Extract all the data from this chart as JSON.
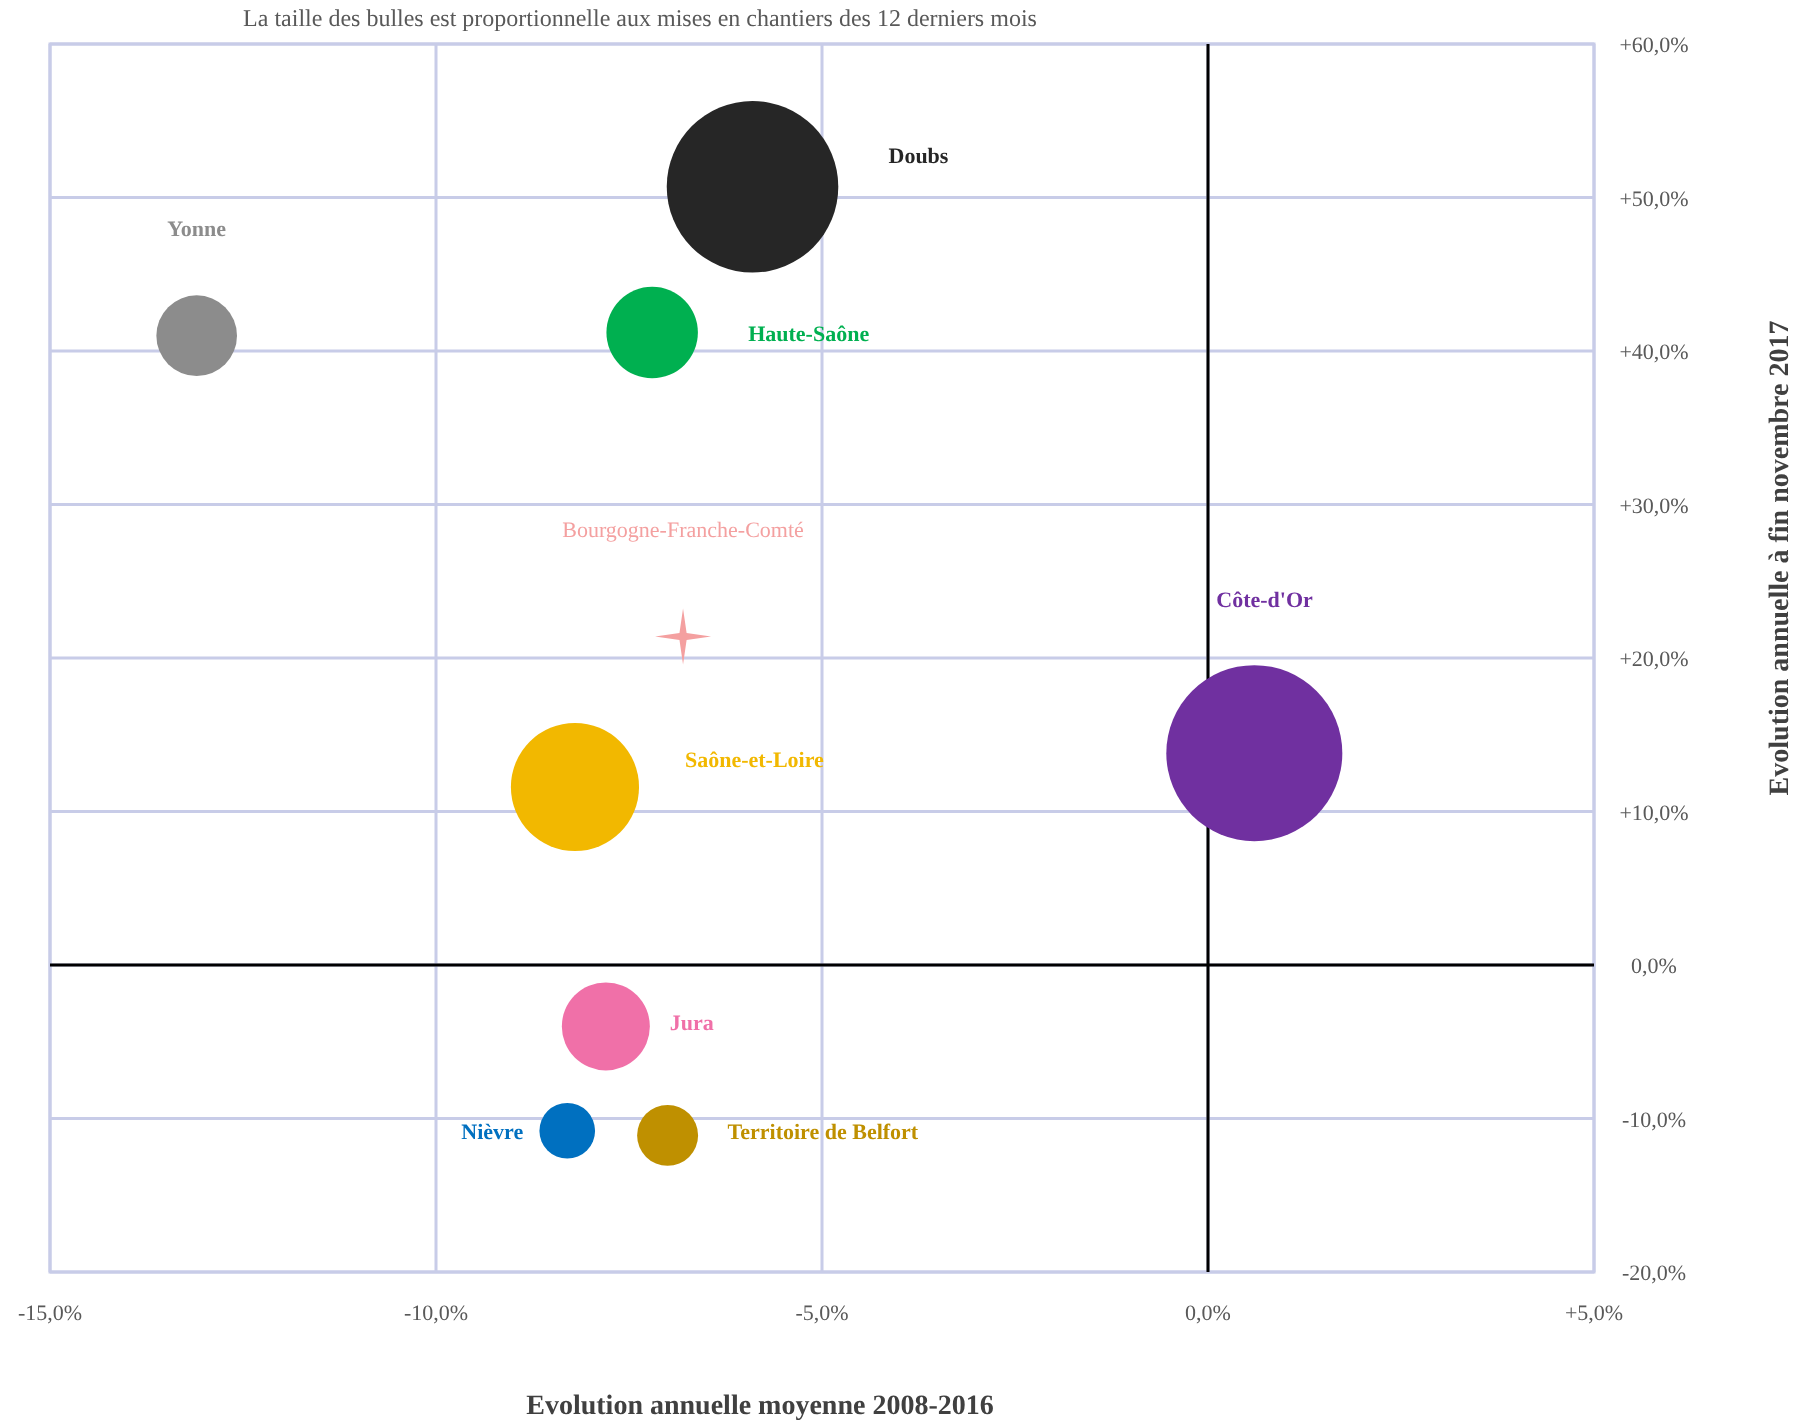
{
  "chart_data": {
    "type": "bubble",
    "title": "La taille des bulles est proportionnelle  aux mises en chantiers des 12 derniers mois",
    "xlabel": "Evolution annuelle moyenne 2008-2016",
    "ylabel": "Evolution annuelle à fin novembre 2017",
    "xlim": [
      -15,
      5
    ],
    "xticks": [
      {
        "value": -15,
        "label": "-15,0%"
      },
      {
        "value": -10,
        "label": "-10,0%"
      },
      {
        "value": -5,
        "label": "-5,0%"
      },
      {
        "value": 0,
        "label": "0,0%"
      },
      {
        "value": 5,
        "label": "+5,0%"
      }
    ],
    "ylim": [
      -20,
      60
    ],
    "yticks": [
      {
        "value": -20,
        "label": "-20,0%"
      },
      {
        "value": -10,
        "label": "-10,0%"
      },
      {
        "value": 0,
        "label": "0,0%"
      },
      {
        "value": 10,
        "label": "+10,0%"
      },
      {
        "value": 20,
        "label": "+20,0%"
      },
      {
        "value": 30,
        "label": "+30,0%"
      },
      {
        "value": 40,
        "label": "+40,0%"
      },
      {
        "value": 50,
        "label": "+50,0%"
      },
      {
        "value": 60,
        "label": "+60,0%"
      }
    ],
    "grid": true,
    "series": [
      {
        "name": "Doubs",
        "color": "#262626",
        "x": [
          -5.9
        ],
        "values": [
          50.7
        ],
        "sizes": [
          0.95
        ]
      },
      {
        "name": "Yonne",
        "color": "#8c8c8c",
        "x": [
          -13.1
        ],
        "values": [
          41
        ],
        "sizes": [
          0.21
        ]
      },
      {
        "name": "Haute-Saône",
        "color": "#00b050",
        "x": [
          -7.2
        ],
        "values": [
          41.2
        ],
        "sizes": [
          0.27
        ]
      },
      {
        "name": "Bourgogne-Franche-Comté",
        "type": "scatter",
        "marker": "star",
        "color": "#f4a0a0",
        "x": [
          -6.8
        ],
        "values": [
          21.4
        ]
      },
      {
        "name": "Saône-et-Loire",
        "color": "#f2b800",
        "x": [
          -8.2
        ],
        "values": [
          11.6
        ],
        "sizes": [
          0.53
        ]
      },
      {
        "name": "Côte-d'Or",
        "color": "#7030a0",
        "x": [
          0.6
        ],
        "values": [
          13.8
        ],
        "sizes": [
          1
        ]
      },
      {
        "name": "Jura",
        "color": "#f070a8",
        "x": [
          -7.8
        ],
        "values": [
          -4
        ],
        "sizes": [
          0.25
        ]
      },
      {
        "name": "Nièvre",
        "color": "#0070c0",
        "x": [
          -8.3
        ],
        "values": [
          -10.8
        ],
        "sizes": [
          0.1
        ]
      },
      {
        "name": "Territoire de Belfort",
        "color": "#bf9000",
        "x": [
          -7
        ],
        "values": [
          -11.1
        ],
        "sizes": [
          0.12
        ]
      }
    ]
  }
}
